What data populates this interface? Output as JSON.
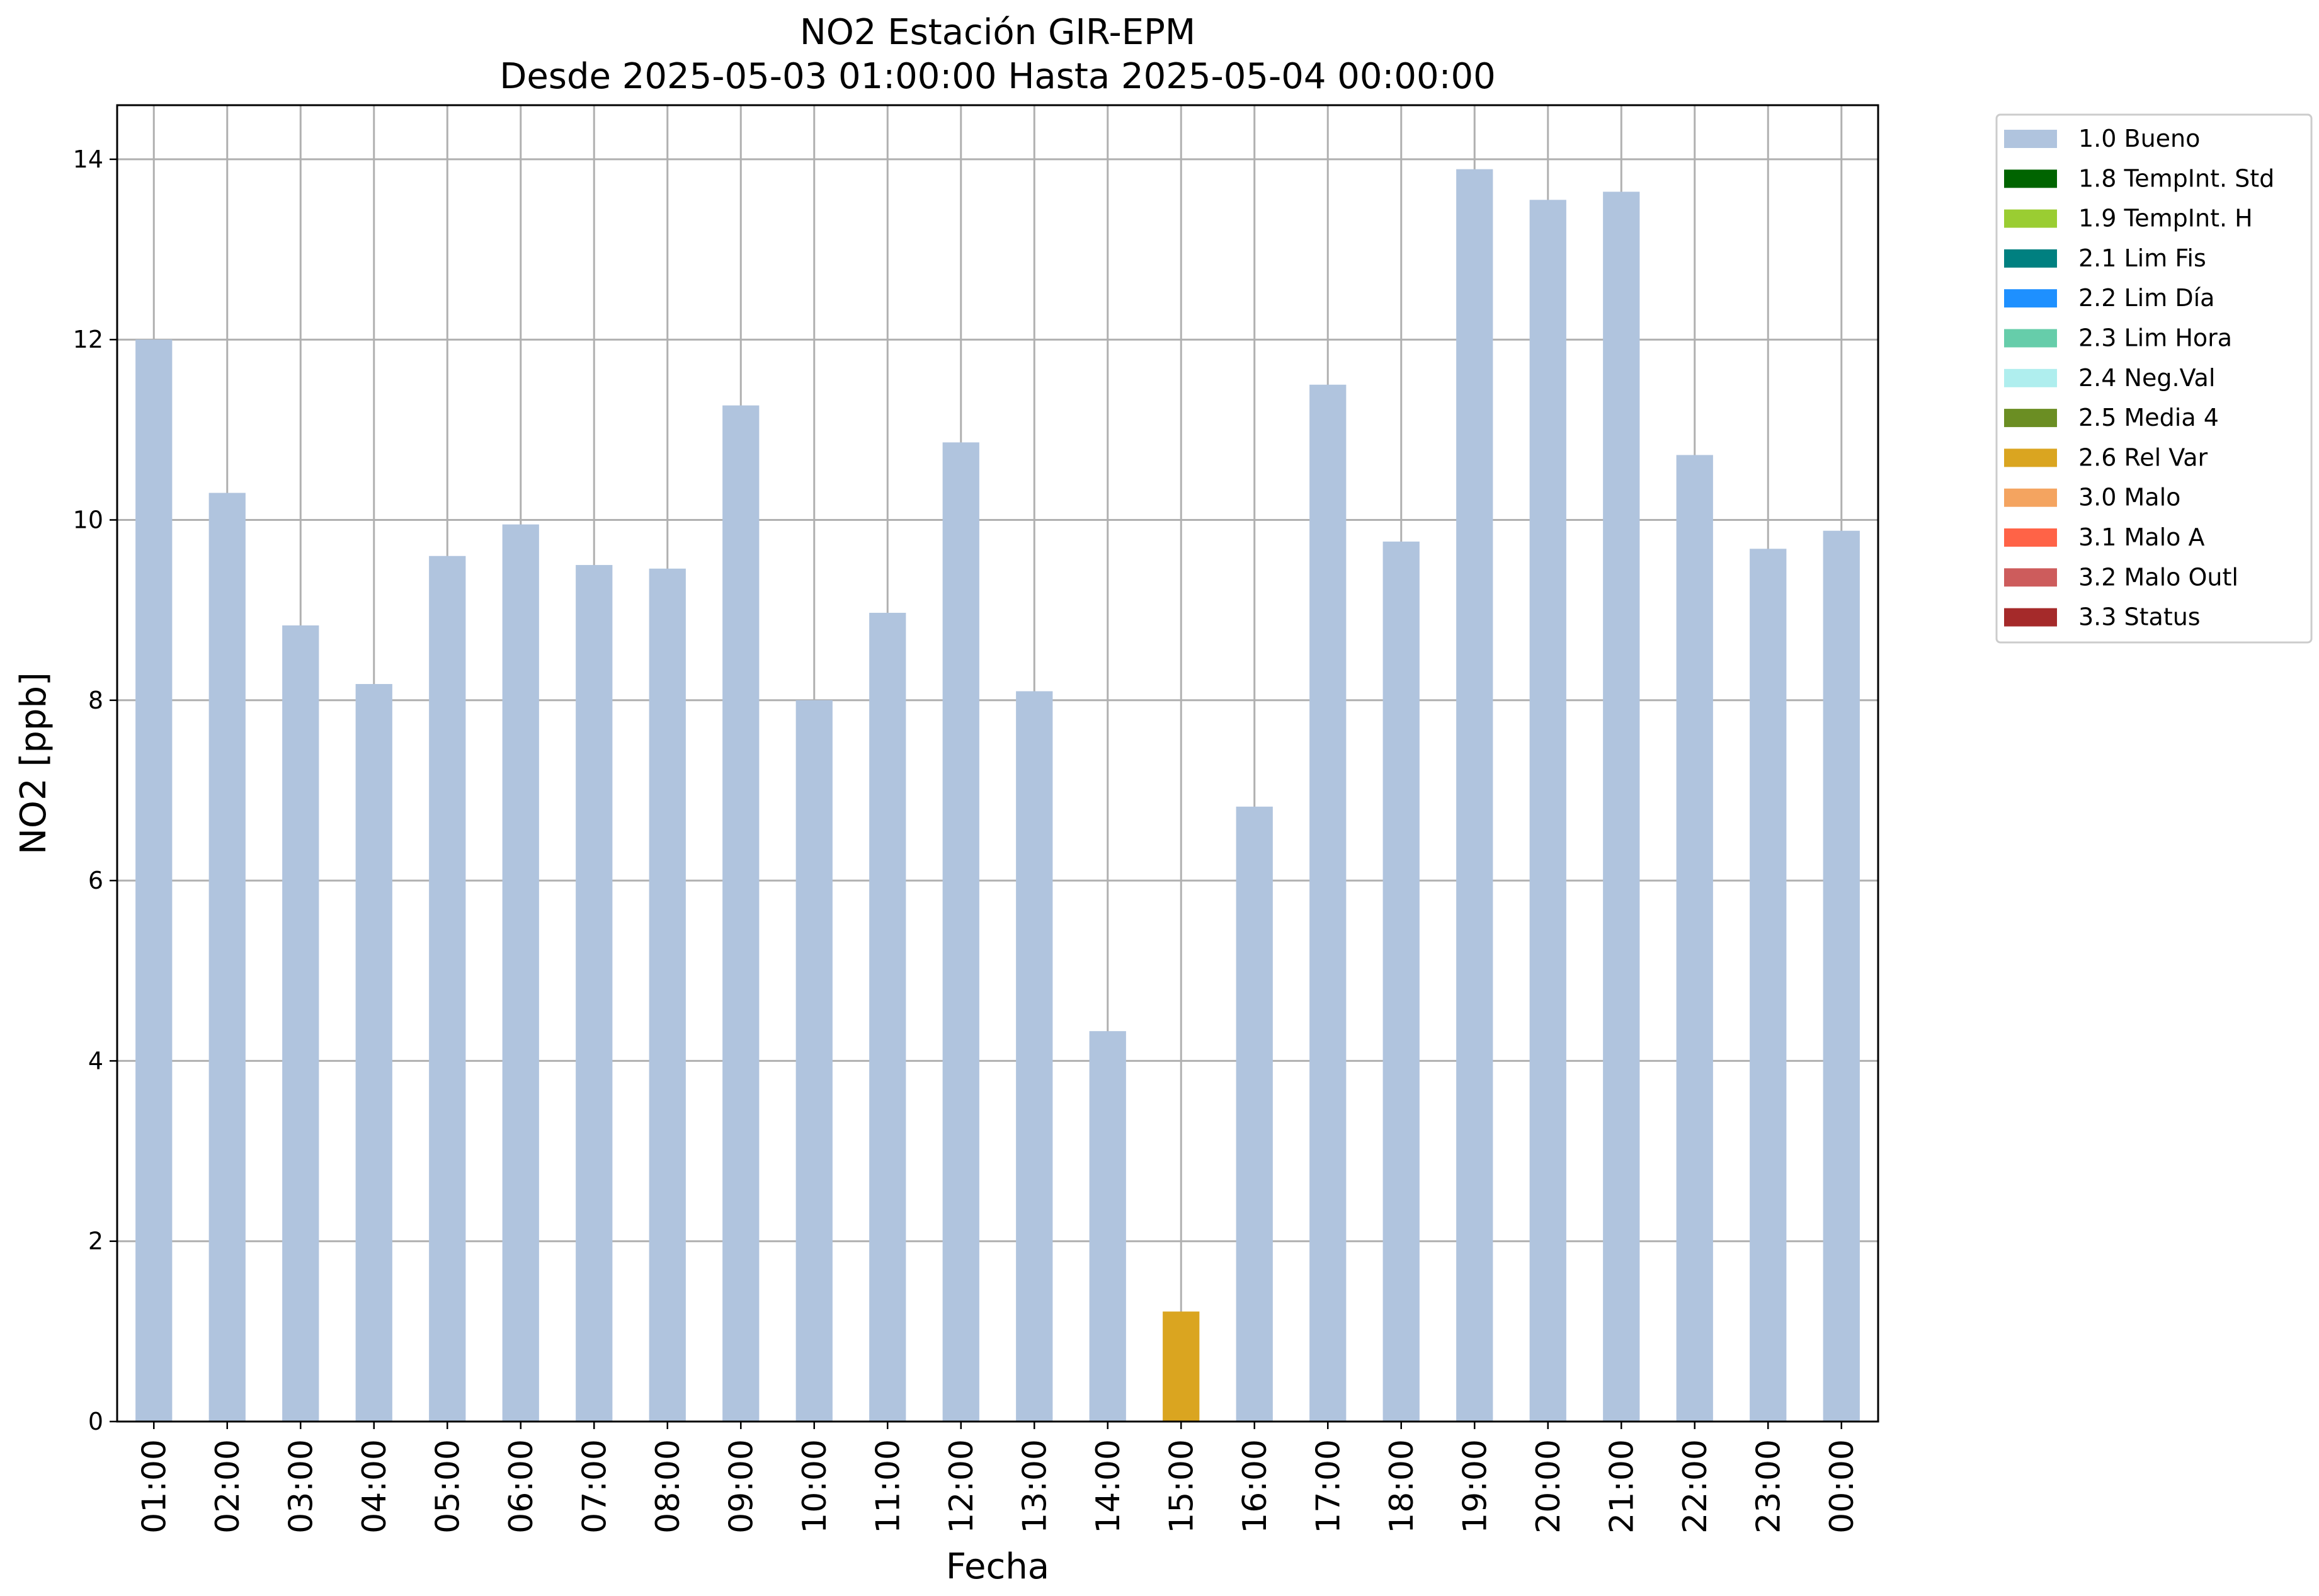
{
  "chart_data": {
    "type": "bar",
    "title": "NO2 Estación GIR-EPM",
    "subtitle": "Desde 2025-05-03 01:00:00 Hasta 2025-05-04 00:00:00",
    "xlabel": "Fecha",
    "ylabel": "NO2 [ppb]",
    "ylim": [
      0,
      14.6
    ],
    "yticks": [
      0,
      2,
      4,
      6,
      8,
      10,
      12,
      14
    ],
    "grid": true,
    "stacked": true,
    "legend_position": "outside-top-right",
    "categories": [
      "01:00",
      "02:00",
      "03:00",
      "04:00",
      "05:00",
      "06:00",
      "07:00",
      "08:00",
      "09:00",
      "10:00",
      "11:00",
      "12:00",
      "13:00",
      "14:00",
      "15:00",
      "16:00",
      "17:00",
      "18:00",
      "19:00",
      "20:00",
      "21:00",
      "22:00",
      "23:00",
      "00:00"
    ],
    "series": [
      {
        "name": "1.0 Bueno",
        "color": "#b0c4de",
        "values": [
          12.0,
          10.3,
          8.83,
          8.18,
          9.6,
          9.95,
          9.5,
          9.46,
          11.27,
          8.0,
          8.97,
          10.86,
          8.1,
          4.33,
          0,
          6.82,
          11.5,
          9.76,
          13.89,
          13.55,
          13.64,
          10.72,
          9.68,
          9.88
        ]
      },
      {
        "name": "1.8 TempInt. Std",
        "color": "#006400",
        "values": [
          0,
          0,
          0,
          0,
          0,
          0,
          0,
          0,
          0,
          0,
          0,
          0,
          0,
          0,
          0,
          0,
          0,
          0,
          0,
          0,
          0,
          0,
          0,
          0
        ]
      },
      {
        "name": "1.9 TempInt. H",
        "color": "#9acd32",
        "values": [
          0,
          0,
          0,
          0,
          0,
          0,
          0,
          0,
          0,
          0,
          0,
          0,
          0,
          0,
          0,
          0,
          0,
          0,
          0,
          0,
          0,
          0,
          0,
          0
        ]
      },
      {
        "name": "2.1 Lim Fis",
        "color": "#008080",
        "values": [
          0,
          0,
          0,
          0,
          0,
          0,
          0,
          0,
          0,
          0,
          0,
          0,
          0,
          0,
          0,
          0,
          0,
          0,
          0,
          0,
          0,
          0,
          0,
          0
        ]
      },
      {
        "name": "2.2 Lim Día",
        "color": "#1e90ff",
        "values": [
          0,
          0,
          0,
          0,
          0,
          0,
          0,
          0,
          0,
          0,
          0,
          0,
          0,
          0,
          0,
          0,
          0,
          0,
          0,
          0,
          0,
          0,
          0,
          0
        ]
      },
      {
        "name": "2.3 Lim Hora",
        "color": "#66cdaa",
        "values": [
          0,
          0,
          0,
          0,
          0,
          0,
          0,
          0,
          0,
          0,
          0,
          0,
          0,
          0,
          0,
          0,
          0,
          0,
          0,
          0,
          0,
          0,
          0,
          0
        ]
      },
      {
        "name": "2.4 Neg.Val",
        "color": "#afeeee",
        "values": [
          0,
          0,
          0,
          0,
          0,
          0,
          0,
          0,
          0,
          0,
          0,
          0,
          0,
          0,
          0,
          0,
          0,
          0,
          0,
          0,
          0,
          0,
          0,
          0
        ]
      },
      {
        "name": "2.5 Media 4",
        "color": "#6b8e23",
        "values": [
          0,
          0,
          0,
          0,
          0,
          0,
          0,
          0,
          0,
          0,
          0,
          0,
          0,
          0,
          0,
          0,
          0,
          0,
          0,
          0,
          0,
          0,
          0,
          0
        ]
      },
      {
        "name": "2.6 Rel Var",
        "color": "#daa520",
        "values": [
          0,
          0,
          0,
          0,
          0,
          0,
          0,
          0,
          0,
          0,
          0,
          0,
          0,
          0,
          1.22,
          0,
          0,
          0,
          0,
          0,
          0,
          0,
          0,
          0
        ]
      },
      {
        "name": "3.0 Malo",
        "color": "#f4a460",
        "values": [
          0,
          0,
          0,
          0,
          0,
          0,
          0,
          0,
          0,
          0,
          0,
          0,
          0,
          0,
          0,
          0,
          0,
          0,
          0,
          0,
          0,
          0,
          0,
          0
        ]
      },
      {
        "name": "3.1 Malo A",
        "color": "#ff6347",
        "values": [
          0,
          0,
          0,
          0,
          0,
          0,
          0,
          0,
          0,
          0,
          0,
          0,
          0,
          0,
          0,
          0,
          0,
          0,
          0,
          0,
          0,
          0,
          0,
          0
        ]
      },
      {
        "name": "3.2 Malo Outl",
        "color": "#cd5c5c",
        "values": [
          0,
          0,
          0,
          0,
          0,
          0,
          0,
          0,
          0,
          0,
          0,
          0,
          0,
          0,
          0,
          0,
          0,
          0,
          0,
          0,
          0,
          0,
          0,
          0
        ]
      },
      {
        "name": "3.3 Status",
        "color": "#a52a2a",
        "values": [
          0,
          0,
          0,
          0,
          0,
          0,
          0,
          0,
          0,
          0,
          0,
          0,
          0,
          0,
          0,
          0,
          0,
          0,
          0,
          0,
          0,
          0,
          0,
          0
        ]
      }
    ]
  }
}
